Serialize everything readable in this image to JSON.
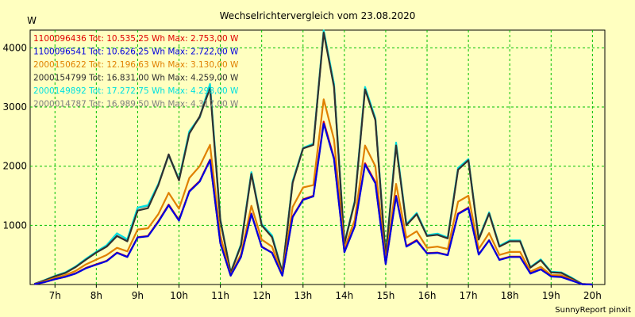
{
  "chart_data": {
    "type": "line",
    "title": "Wechselrichtervergleich vom 23.08.2020",
    "ylabel": "W",
    "footer": "SunnyReport pinxit",
    "ylim": [
      0,
      4300
    ],
    "xlim": [
      6.4,
      20.3
    ],
    "y_ticks": [
      1000,
      2000,
      3000,
      4000
    ],
    "x_ticks": [
      7,
      8,
      9,
      10,
      11,
      12,
      13,
      14,
      15,
      16,
      17,
      18,
      19,
      20
    ],
    "x_tick_labels": [
      "7h",
      "8h",
      "9h",
      "10h",
      "11h",
      "12h",
      "13h",
      "14h",
      "15h",
      "16h",
      "17h",
      "18h",
      "19h",
      "20h"
    ],
    "grid": true,
    "x": [
      6.5,
      6.75,
      7.0,
      7.25,
      7.5,
      7.75,
      8.0,
      8.25,
      8.5,
      8.75,
      9.0,
      9.25,
      9.5,
      9.75,
      10.0,
      10.25,
      10.5,
      10.75,
      11.0,
      11.25,
      11.5,
      11.75,
      12.0,
      12.25,
      12.5,
      12.75,
      13.0,
      13.25,
      13.5,
      13.75,
      14.0,
      14.25,
      14.5,
      14.75,
      15.0,
      15.25,
      15.5,
      15.75,
      16.0,
      16.25,
      16.5,
      16.75,
      17.0,
      17.25,
      17.5,
      17.75,
      18.0,
      18.25,
      18.5,
      18.75,
      19.0,
      19.25,
      19.5,
      19.75,
      20.0
    ],
    "series": [
      {
        "name": "2000014787",
        "color": "#808080",
        "values": [
          10,
          70,
          140,
          200,
          300,
          430,
          550,
          660,
          860,
          760,
          1290,
          1330,
          1690,
          2180,
          1770,
          2580,
          2820,
          3370,
          1090,
          200,
          670,
          1890,
          1010,
          820,
          210,
          1740,
          2300,
          2370,
          4290,
          3380,
          700,
          1400,
          3320,
          2800,
          480,
          2370,
          1010,
          1200,
          830,
          850,
          790,
          1960,
          2110,
          770,
          1210,
          650,
          740,
          740,
          290,
          420,
          210,
          200,
          110,
          10,
          0
        ]
      },
      {
        "name": "2000149892",
        "color": "#00E0E0",
        "values": [
          10,
          75,
          145,
          205,
          305,
          435,
          555,
          665,
          865,
          765,
          1300,
          1340,
          1700,
          2190,
          1780,
          2590,
          2830,
          3390,
          1100,
          205,
          680,
          1900,
          1020,
          830,
          215,
          1750,
          2310,
          2380,
          4296,
          3390,
          705,
          1410,
          3340,
          2810,
          485,
          2400,
          1020,
          1210,
          835,
          860,
          795,
          1970,
          2120,
          775,
          1220,
          655,
          745,
          745,
          295,
          425,
          215,
          205,
          115,
          10,
          0
        ]
      },
      {
        "name": "2000154799",
        "color": "#303030",
        "values": [
          10,
          70,
          140,
          195,
          295,
          420,
          540,
          640,
          820,
          730,
          1250,
          1290,
          1680,
          2200,
          1760,
          2550,
          2840,
          3320,
          1080,
          200,
          660,
          1870,
          1000,
          800,
          210,
          1720,
          2300,
          2360,
          4259,
          3340,
          690,
          1390,
          3300,
          2780,
          470,
          2350,
          1000,
          1190,
          820,
          840,
          780,
          1940,
          2100,
          760,
          1200,
          640,
          730,
          730,
          285,
          410,
          205,
          195,
          105,
          10,
          0
        ]
      },
      {
        "name": "2000150622",
        "color": "#E08000",
        "values": [
          8,
          55,
          110,
          160,
          230,
          340,
          420,
          500,
          620,
          560,
          930,
          950,
          1190,
          1550,
          1280,
          1800,
          2000,
          2360,
          830,
          160,
          510,
          1330,
          760,
          640,
          170,
          1310,
          1640,
          1680,
          3130,
          2450,
          610,
          1090,
          2350,
          2000,
          380,
          1700,
          790,
          900,
          620,
          640,
          600,
          1400,
          1500,
          600,
          870,
          500,
          550,
          550,
          220,
          300,
          160,
          155,
          80,
          8,
          0
        ]
      },
      {
        "name": "1100096436",
        "color": "#E00000",
        "values": [
          5,
          40,
          90,
          130,
          190,
          280,
          340,
          400,
          540,
          470,
          800,
          820,
          1070,
          1350,
          1090,
          1580,
          1750,
          2110,
          700,
          150,
          470,
          1200,
          640,
          540,
          150,
          1150,
          1440,
          1500,
          2753,
          2140,
          550,
          990,
          2050,
          1730,
          350,
          1500,
          650,
          750,
          530,
          540,
          500,
          1200,
          1300,
          510,
          750,
          420,
          470,
          470,
          190,
          260,
          140,
          130,
          70,
          5,
          0
        ]
      },
      {
        "name": "1100096541",
        "color": "#0000E0",
        "values": [
          5,
          40,
          90,
          130,
          185,
          275,
          335,
          395,
          535,
          465,
          795,
          815,
          1060,
          1340,
          1080,
          1570,
          1740,
          2100,
          695,
          150,
          465,
          1190,
          635,
          535,
          150,
          1140,
          1430,
          1490,
          2722,
          2120,
          545,
          980,
          2030,
          1710,
          345,
          1490,
          640,
          740,
          525,
          535,
          495,
          1190,
          1290,
          505,
          745,
          415,
          465,
          465,
          185,
          255,
          135,
          125,
          65,
          5,
          0
        ]
      }
    ],
    "legend": [
      {
        "id": "1100096436",
        "tot": "Tot: 10.535,25",
        "max": "Wh Max: 2.753,00 W",
        "color": "#E00000"
      },
      {
        "id": "1100096541",
        "tot": "Tot: 10.626,25",
        "max": "Wh Max: 2.722,00 W",
        "color": "#0000E0"
      },
      {
        "id": "2000150622",
        "tot": "Tot: 12.196,63",
        "max": "Wh Max: 3.130,00 W",
        "color": "#E08000"
      },
      {
        "id": "2000154799",
        "tot": "Tot: 16.831,00",
        "max": "Wh Max: 4.259,00 W",
        "color": "#303030"
      },
      {
        "id": "2000149892",
        "tot": "Tot: 17.272,75",
        "max": "Wh Max: 4.298,00 W",
        "color": "#00E0E0"
      },
      {
        "id": "2000014787",
        "tot": "Tot: 16.989,50",
        "max": "Wh Max: 4.317,00 W",
        "color": "#808080"
      }
    ]
  }
}
